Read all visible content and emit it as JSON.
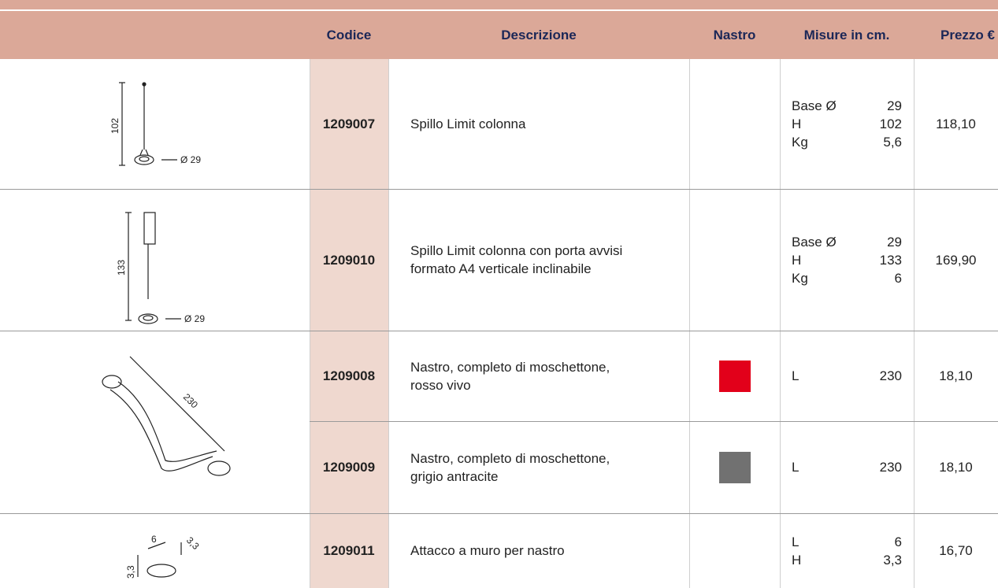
{
  "header": {
    "columns": [
      "Codice",
      "Descrizione",
      "Nastro",
      "Misure in cm.",
      "Prezzo €"
    ]
  },
  "rows": [
    {
      "code": "1209007",
      "description": [
        "Spillo Limit colonna"
      ],
      "measures": [
        {
          "label": "Base Ø",
          "value": "29"
        },
        {
          "label": "H",
          "value": "102"
        },
        {
          "label": "Kg",
          "value": "5,6"
        }
      ],
      "price": "118,10"
    },
    {
      "code": "1209010",
      "description": [
        "Spillo Limit colonna con porta avvisi",
        "formato A4 verticale inclinabile"
      ],
      "measures": [
        {
          "label": "Base Ø",
          "value": "29"
        },
        {
          "label": "H",
          "value": "133"
        },
        {
          "label": "Kg",
          "value": "6"
        }
      ],
      "price": "169,90"
    },
    {
      "code": "1209008",
      "description": [
        "Nastro, completo di moschettone,",
        "rosso vivo"
      ],
      "nastro_color": "#e2001a",
      "measures": [
        {
          "label": "L",
          "value": "230"
        }
      ],
      "price": "18,10"
    },
    {
      "code": "1209009",
      "description": [
        "Nastro, completo di moschettone,",
        "grigio antracite"
      ],
      "nastro_color": "#717171",
      "measures": [
        {
          "label": "L",
          "value": "230"
        }
      ],
      "price": "18,10"
    },
    {
      "code": "1209011",
      "description": [
        "Attacco a muro per nastro"
      ],
      "measures": [
        {
          "label": "L",
          "value": "6"
        },
        {
          "label": "H",
          "value": "3,3"
        }
      ],
      "price": "16,70"
    }
  ],
  "images": [
    {
      "labels": [
        "102",
        "Ø 29"
      ]
    },
    {
      "labels": [
        "133",
        "Ø 29"
      ]
    },
    {
      "labels": [
        "230"
      ]
    },
    {
      "labels": [
        "6",
        "3,3",
        "3,3"
      ]
    }
  ]
}
